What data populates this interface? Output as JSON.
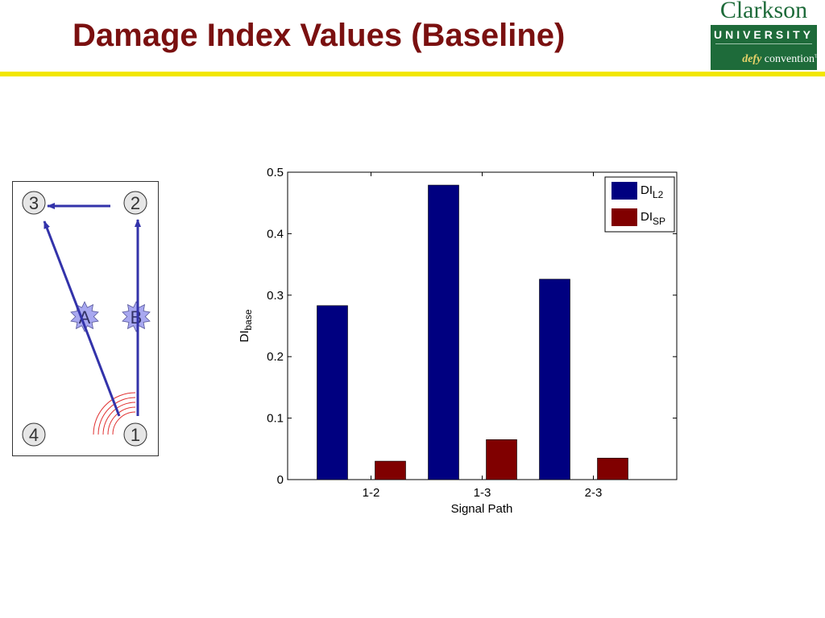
{
  "slide": {
    "title": "Damage Index Values (Baseline)"
  },
  "logo": {
    "name": "Clarkson",
    "university": "UNIVERSITY",
    "tagline_a": "defy",
    "tagline_b": "convention",
    "trademark": "TM"
  },
  "diagram": {
    "sensors": [
      "1",
      "2",
      "3",
      "4"
    ],
    "damage_sites": [
      "A",
      "B"
    ],
    "colors": {
      "arrow": "#3333aa",
      "damage_fill": "#a8a8f0",
      "wave": "#e03030",
      "sensor_fill": "#e6e6e6"
    }
  },
  "chart_data": {
    "type": "bar",
    "categories": [
      "1-2",
      "1-3",
      "2-3"
    ],
    "series": [
      {
        "name": "DI",
        "name_sub": "L2",
        "values": [
          0.283,
          0.479,
          0.326
        ],
        "color": "#000080"
      },
      {
        "name": "DI",
        "name_sub": "SP",
        "values": [
          0.03,
          0.065,
          0.035
        ],
        "color": "#800000"
      }
    ],
    "xlabel": "Signal Path",
    "ylabel": "DI",
    "ylabel_sub": "base",
    "ylim": [
      0,
      0.5
    ],
    "yticks": [
      "0",
      "0.1",
      "0.2",
      "0.3",
      "0.4",
      "0.5"
    ],
    "grid": false,
    "legend_position": "top-right"
  }
}
